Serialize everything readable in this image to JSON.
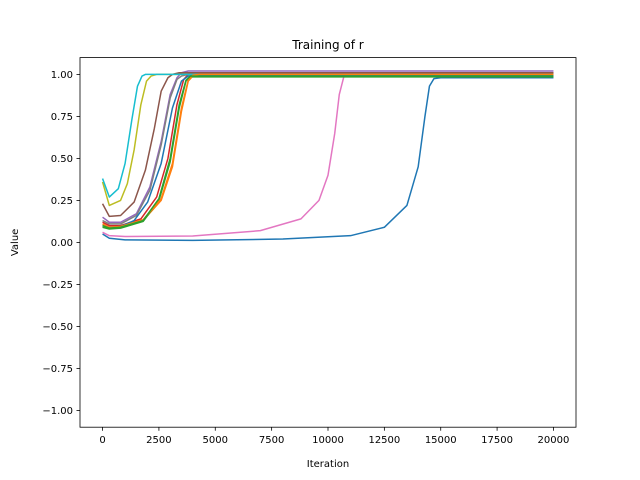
{
  "chart_data": {
    "type": "line",
    "title": "Training of r",
    "xlabel": "Iteration",
    "ylabel": "Value",
    "xlim": [
      -1000,
      21000
    ],
    "ylim": [
      -1.1,
      1.1
    ],
    "x_ticks": [
      0,
      2500,
      5000,
      7500,
      10000,
      12500,
      15000,
      17500,
      20000
    ],
    "y_ticks": [
      1.0,
      0.75,
      0.5,
      0.25,
      0.0,
      -0.25,
      -0.5,
      -0.75,
      -1.0
    ],
    "x_tick_labels": [
      "0",
      "2500",
      "5000",
      "7500",
      "10000",
      "12500",
      "15000",
      "17500",
      "20000"
    ],
    "y_tick_labels": [
      "1.00",
      "0.75",
      "0.50",
      "0.25",
      "0.00",
      "−0.25",
      "−0.50",
      "−0.75",
      "−1.00"
    ],
    "grid": false,
    "legend": false,
    "series": [
      {
        "color": "#1f77b4",
        "x": [
          0,
          300,
          1000,
          4000,
          8000,
          11000,
          12500,
          13500,
          14000,
          14300,
          14500,
          14700,
          15000,
          20000
        ],
        "y": [
          0.05,
          0.025,
          0.015,
          0.012,
          0.02,
          0.04,
          0.09,
          0.22,
          0.45,
          0.75,
          0.93,
          0.975,
          0.98,
          0.98
        ]
      },
      {
        "color": "#e377c2",
        "x": [
          0,
          300,
          1000,
          4000,
          7000,
          8800,
          9600,
          10000,
          10300,
          10500,
          10700,
          11000,
          20000
        ],
        "y": [
          0.06,
          0.04,
          0.035,
          0.038,
          0.07,
          0.14,
          0.25,
          0.4,
          0.65,
          0.88,
          0.985,
          1.0,
          1.0
        ]
      },
      {
        "color": "#ff7f0e",
        "x": [
          0,
          300,
          800,
          1800,
          2600,
          3100,
          3500,
          3800,
          4000,
          4300,
          20000
        ],
        "y": [
          0.1,
          0.085,
          0.09,
          0.13,
          0.25,
          0.45,
          0.78,
          0.96,
          0.99,
          1.0,
          1.0
        ]
      },
      {
        "color": "#2ca02c",
        "x": [
          0,
          300,
          800,
          1800,
          2500,
          3000,
          3400,
          3700,
          3900,
          4200,
          20000
        ],
        "y": [
          0.09,
          0.08,
          0.085,
          0.125,
          0.25,
          0.48,
          0.8,
          0.96,
          0.985,
          0.985,
          0.985
        ]
      },
      {
        "color": "#d62728",
        "x": [
          0,
          300,
          800,
          1700,
          2400,
          2900,
          3300,
          3600,
          3800,
          4100,
          20000
        ],
        "y": [
          0.12,
          0.1,
          0.1,
          0.14,
          0.27,
          0.5,
          0.82,
          0.97,
          1.0,
          1.01,
          1.01
        ]
      },
      {
        "color": "#9467bd",
        "x": [
          0,
          300,
          800,
          1500,
          2100,
          2600,
          3000,
          3300,
          3500,
          3800,
          20000
        ],
        "y": [
          0.15,
          0.12,
          0.12,
          0.17,
          0.33,
          0.6,
          0.88,
          0.98,
          1.01,
          1.02,
          1.02
        ]
      },
      {
        "color": "#8c564b",
        "x": [
          0,
          300,
          800,
          1400,
          1900,
          2300,
          2600,
          2900,
          3100,
          3400,
          20000
        ],
        "y": [
          0.23,
          0.155,
          0.16,
          0.24,
          0.43,
          0.68,
          0.9,
          0.98,
          1.0,
          1.01,
          1.01
        ]
      },
      {
        "color": "#7f7f7f",
        "x": [
          0,
          300,
          800,
          1500,
          2100,
          2600,
          3000,
          3300,
          3500,
          3800,
          20000
        ],
        "y": [
          0.13,
          0.11,
          0.11,
          0.16,
          0.31,
          0.58,
          0.86,
          0.97,
          0.99,
          1.0,
          1.0
        ]
      },
      {
        "color": "#bcbd22",
        "x": [
          0,
          300,
          800,
          1100,
          1400,
          1700,
          1950,
          2150,
          2400,
          20000
        ],
        "y": [
          0.36,
          0.22,
          0.25,
          0.35,
          0.55,
          0.82,
          0.96,
          0.99,
          1.0,
          1.0
        ]
      },
      {
        "color": "#17becf",
        "x": [
          0,
          300,
          700,
          1000,
          1300,
          1550,
          1750,
          1900,
          2100,
          20000
        ],
        "y": [
          0.38,
          0.27,
          0.32,
          0.47,
          0.73,
          0.93,
          0.99,
          1.0,
          1.0,
          1.0
        ]
      },
      {
        "color": "#1f77b4",
        "x": [
          0,
          300,
          800,
          1400,
          2000,
          2600,
          3100,
          3500,
          3800,
          4100,
          20000
        ],
        "y": [
          0.1,
          0.09,
          0.095,
          0.13,
          0.24,
          0.47,
          0.8,
          0.96,
          0.99,
          0.995,
          0.995
        ]
      },
      {
        "color": "#ff7f0e",
        "x": [
          0,
          300,
          800,
          1800,
          2600,
          3100,
          3500,
          3800,
          4000,
          4300,
          20000
        ],
        "y": [
          0.11,
          0.09,
          0.095,
          0.135,
          0.26,
          0.47,
          0.8,
          0.965,
          0.995,
          1.0,
          1.0
        ]
      },
      {
        "color": "#2ca02c",
        "x": [
          0,
          300,
          800,
          1800,
          2500,
          3000,
          3400,
          3700,
          3900,
          4200,
          20000
        ],
        "y": [
          0.1,
          0.085,
          0.09,
          0.13,
          0.26,
          0.5,
          0.82,
          0.965,
          0.99,
          0.99,
          0.99
        ]
      }
    ]
  }
}
